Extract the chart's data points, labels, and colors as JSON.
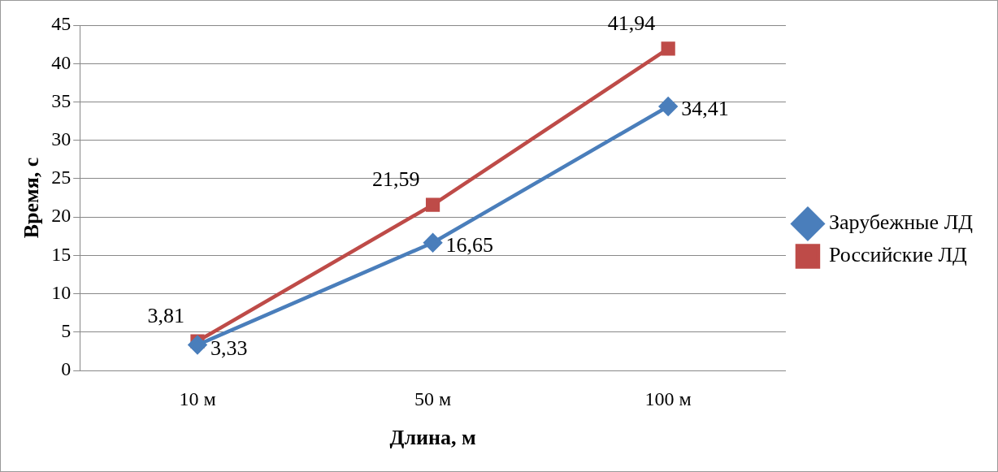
{
  "chart_data": {
    "type": "line",
    "xlabel": "Длина, м",
    "ylabel": "Время, с",
    "categories": [
      "10 м",
      "50 м",
      "100 м"
    ],
    "series": [
      {
        "name": "Зарубежные ЛД",
        "color": "#4a7ebb",
        "marker": "diamond",
        "values": [
          3.33,
          16.65,
          34.41
        ],
        "value_labels": [
          "3,33",
          "16,65",
          "34,41"
        ]
      },
      {
        "name": "Российские ЛД",
        "color": "#be4b48",
        "marker": "square",
        "values": [
          3.81,
          21.59,
          41.94
        ],
        "value_labels": [
          "3,81",
          "21,59",
          "41,94"
        ]
      }
    ],
    "ylim": [
      0,
      45
    ],
    "yticks": [
      0,
      5,
      10,
      15,
      20,
      25,
      30,
      35,
      40,
      45
    ],
    "grid": "y",
    "legend": "right",
    "line_style": "solid"
  }
}
